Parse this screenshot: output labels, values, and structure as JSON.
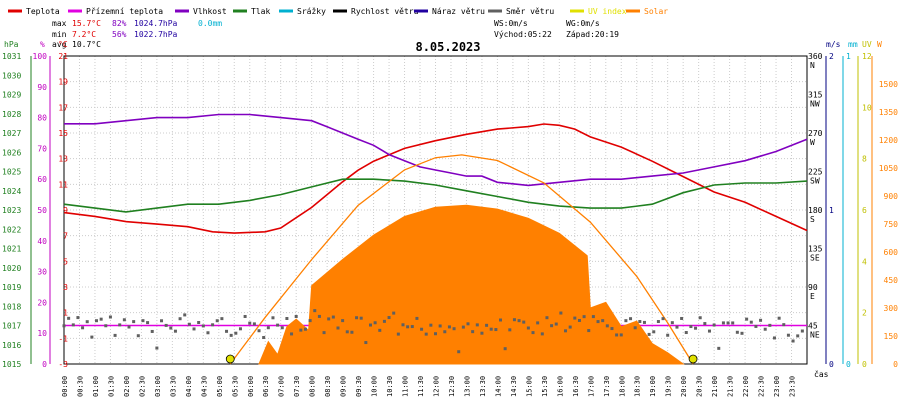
{
  "colors": {
    "temp": "#e00000",
    "dew": "#e000e0",
    "hum": "#8000c0",
    "press": "#208020",
    "rain": "#00b0d0",
    "wind": "#000000",
    "gust": "#2000a0",
    "dir": "#606060",
    "uv": "#e0e000",
    "solar": "#ff8000",
    "axis_left_press": "#208020",
    "axis_left_hum": "#c000c0",
    "axis_left_temp": "#e00000",
    "axis_ms": "#000080",
    "axis_mm": "#00b0d0",
    "axis_uv": "#c0c000",
    "axis_w": "#ff8000"
  },
  "legend": [
    {
      "key": "temp",
      "label": "Teplota"
    },
    {
      "key": "dew",
      "label": "Přízemní teplota"
    },
    {
      "key": "hum",
      "label": "Vlhkost"
    },
    {
      "key": "press",
      "label": "Tlak"
    },
    {
      "key": "rain",
      "label": "Srážky"
    },
    {
      "key": "wind",
      "label": "Rychlost větru"
    },
    {
      "key": "gust",
      "label": "Náraz větru"
    },
    {
      "key": "dir",
      "label": "Směr větru"
    },
    {
      "key": "uv",
      "label": "UV index"
    },
    {
      "key": "solar",
      "label": "Solar"
    }
  ],
  "stats": {
    "max_label": "max",
    "max_temp": "15.7°C",
    "max_hum": "82%",
    "max_press": "1024.7hPa",
    "max_rain": "0.0mm",
    "min_label": "min",
    "min_temp": "7.2°C",
    "min_hum": "56%",
    "min_press": "1022.7hPa",
    "avg_label": "avg",
    "avg_temp": "10.7°C",
    "ws": "WS:0m/s",
    "wg": "WG:0m/s",
    "sunrise": "Východ:05:22",
    "sunset": "Západ:20:19"
  },
  "chart_data": {
    "type": "line",
    "title": "8.05.2023",
    "xlabel": "čas",
    "x_ticks": [
      "00:00",
      "00:30",
      "01:00",
      "01:30",
      "02:00",
      "02:30",
      "03:00",
      "03:30",
      "04:00",
      "04:30",
      "05:00",
      "05:30",
      "06:00",
      "06:30",
      "07:00",
      "07:30",
      "08:00",
      "08:30",
      "09:00",
      "09:30",
      "10:00",
      "10:30",
      "11:00",
      "11:30",
      "12:00",
      "12:30",
      "13:00",
      "13:30",
      "14:00",
      "14:30",
      "15:00",
      "15:30",
      "16:00",
      "16:30",
      "17:00",
      "17:30",
      "18:00",
      "18:30",
      "19:00",
      "19:30",
      "20:00",
      "20:30",
      "21:00",
      "21:30",
      "22:00",
      "22:30",
      "23:00",
      "23:30"
    ],
    "axes": {
      "pressure": {
        "unit": "hPa",
        "range": [
          1015,
          1031
        ],
        "ticks": [
          "1031",
          "1030",
          "1029",
          "1028",
          "1027",
          "1026",
          "1025",
          "1024",
          "1023",
          "1022",
          "1021",
          "1020",
          "1019",
          "1018",
          "1017",
          "1016",
          "1015"
        ]
      },
      "humidity": {
        "unit": "%",
        "range": [
          0,
          100
        ],
        "ticks": [
          "100",
          "90",
          "80",
          "70",
          "60",
          "50",
          "40",
          "30",
          "20",
          "10",
          "0"
        ]
      },
      "temperature": {
        "unit": "°C",
        "range": [
          -3,
          21
        ],
        "ticks": [
          "21",
          "19",
          "17",
          "15",
          "13",
          "11",
          "9",
          "7",
          "5",
          "3",
          "1",
          "-1",
          "-3"
        ]
      },
      "direction": {
        "ticks": [
          {
            "v": "360",
            "d": "N"
          },
          {
            "v": "315",
            "d": "NW"
          },
          {
            "v": "270",
            "d": "W"
          },
          {
            "v": "225",
            "d": "SW"
          },
          {
            "v": "180",
            "d": "S"
          },
          {
            "v": "135",
            "d": "SE"
          },
          {
            "v": "90",
            "d": "E"
          },
          {
            "v": "45",
            "d": "NE"
          }
        ]
      },
      "wind": {
        "unit": "m/s",
        "ticks": [
          "2",
          "1",
          "0"
        ]
      },
      "rain": {
        "unit": "mm",
        "ticks": [
          "1",
          "0"
        ]
      },
      "uv": {
        "unit": "UV",
        "ticks": [
          "12",
          "10",
          "8",
          "6",
          "4",
          "2",
          "0"
        ]
      },
      "solar": {
        "unit": "W",
        "range": [
          0,
          1650
        ],
        "ticks": [
          "1500",
          "1350",
          "1200",
          "1050",
          "900",
          "750",
          "600",
          "450",
          "300",
          "150",
          "0"
        ]
      }
    },
    "series": [
      {
        "key": "temp",
        "name": "Teplota",
        "axis": "temperature",
        "points": [
          [
            0,
            8.8
          ],
          [
            1,
            8.5
          ],
          [
            2,
            8.1
          ],
          [
            3,
            7.9
          ],
          [
            4,
            7.7
          ],
          [
            4.8,
            7.3
          ],
          [
            5.5,
            7.2
          ],
          [
            6.5,
            7.3
          ],
          [
            7,
            7.6
          ],
          [
            7.5,
            8.4
          ],
          [
            8,
            9.2
          ],
          [
            8.5,
            10.2
          ],
          [
            9,
            11.2
          ],
          [
            9.5,
            12.1
          ],
          [
            10,
            12.8
          ],
          [
            11,
            13.8
          ],
          [
            12,
            14.4
          ],
          [
            13,
            14.9
          ],
          [
            14,
            15.3
          ],
          [
            15,
            15.5
          ],
          [
            15.5,
            15.7
          ],
          [
            16,
            15.6
          ],
          [
            16.5,
            15.3
          ],
          [
            17,
            14.7
          ],
          [
            17.5,
            14.3
          ],
          [
            18,
            13.9
          ],
          [
            19,
            12.8
          ],
          [
            20,
            11.6
          ],
          [
            21,
            10.4
          ],
          [
            22,
            9.6
          ],
          [
            23,
            8.5
          ],
          [
            24,
            7.4
          ]
        ]
      },
      {
        "key": "hum",
        "name": "Vlhkost",
        "axis": "humidity",
        "points": [
          [
            0,
            78
          ],
          [
            1,
            78
          ],
          [
            2,
            79
          ],
          [
            3,
            80
          ],
          [
            4,
            80
          ],
          [
            5,
            81
          ],
          [
            6,
            81
          ],
          [
            7,
            80
          ],
          [
            8,
            79
          ],
          [
            8.5,
            77
          ],
          [
            9,
            75
          ],
          [
            9.5,
            73
          ],
          [
            10,
            71
          ],
          [
            10.5,
            68
          ],
          [
            11,
            66
          ],
          [
            11.5,
            64
          ],
          [
            12,
            63
          ],
          [
            12.5,
            62
          ],
          [
            13,
            61
          ],
          [
            13.5,
            61
          ],
          [
            14,
            59
          ],
          [
            15,
            58
          ],
          [
            16,
            59
          ],
          [
            17,
            60
          ],
          [
            18,
            60
          ],
          [
            19,
            61
          ],
          [
            20,
            62
          ],
          [
            21,
            64
          ],
          [
            22,
            66
          ],
          [
            23,
            69
          ],
          [
            24,
            73
          ]
        ]
      },
      {
        "key": "press",
        "name": "Tlak",
        "axis": "pressure",
        "points": [
          [
            0,
            1023.3
          ],
          [
            1,
            1023.1
          ],
          [
            2,
            1022.9
          ],
          [
            3,
            1023.1
          ],
          [
            4,
            1023.3
          ],
          [
            5,
            1023.3
          ],
          [
            6,
            1023.5
          ],
          [
            7,
            1023.8
          ],
          [
            8,
            1024.2
          ],
          [
            9,
            1024.6
          ],
          [
            10,
            1024.6
          ],
          [
            11,
            1024.5
          ],
          [
            12,
            1024.3
          ],
          [
            13,
            1024.0
          ],
          [
            14,
            1023.7
          ],
          [
            15,
            1023.4
          ],
          [
            16,
            1023.2
          ],
          [
            17,
            1023.1
          ],
          [
            18,
            1023.1
          ],
          [
            19,
            1023.3
          ],
          [
            20,
            1023.9
          ],
          [
            21,
            1024.3
          ],
          [
            22,
            1024.4
          ],
          [
            23,
            1024.4
          ],
          [
            24,
            1024.5
          ]
        ]
      },
      {
        "key": "dew",
        "name": "Přízemní teplota",
        "axis": "temperature",
        "points": [
          [
            0,
            0
          ],
          [
            24,
            0
          ]
        ]
      },
      {
        "key": "solar",
        "name": "Solar",
        "axis": "solar",
        "fill": true,
        "points": [
          [
            6.3,
            0
          ],
          [
            6.6,
            120
          ],
          [
            6.9,
            50
          ],
          [
            7.2,
            200
          ],
          [
            7.5,
            240
          ],
          [
            7.9,
            180
          ],
          [
            8.0,
            420
          ],
          [
            9,
            560
          ],
          [
            10,
            690
          ],
          [
            11,
            790
          ],
          [
            12,
            840
          ],
          [
            13,
            850
          ],
          [
            14,
            830
          ],
          [
            15,
            780
          ],
          [
            16,
            700
          ],
          [
            16.9,
            580
          ],
          [
            17.0,
            300
          ],
          [
            17.5,
            330
          ],
          [
            18,
            200
          ],
          [
            18.5,
            230
          ],
          [
            19,
            110
          ],
          [
            19.5,
            60
          ],
          [
            20,
            0
          ]
        ]
      },
      {
        "key": "solar_theory",
        "name": "Solar",
        "axis": "solar",
        "points": [
          [
            5.37,
            0
          ],
          [
            6.5,
            250
          ],
          [
            8,
            560
          ],
          [
            9.5,
            850
          ],
          [
            11,
            1040
          ],
          [
            12,
            1105
          ],
          [
            12.85,
            1120
          ],
          [
            14,
            1090
          ],
          [
            15.5,
            970
          ],
          [
            17,
            760
          ],
          [
            18.5,
            470
          ],
          [
            19.5,
            220
          ],
          [
            20.32,
            0
          ]
        ]
      }
    ],
    "sun_markers": [
      5.37,
      20.32
    ]
  }
}
